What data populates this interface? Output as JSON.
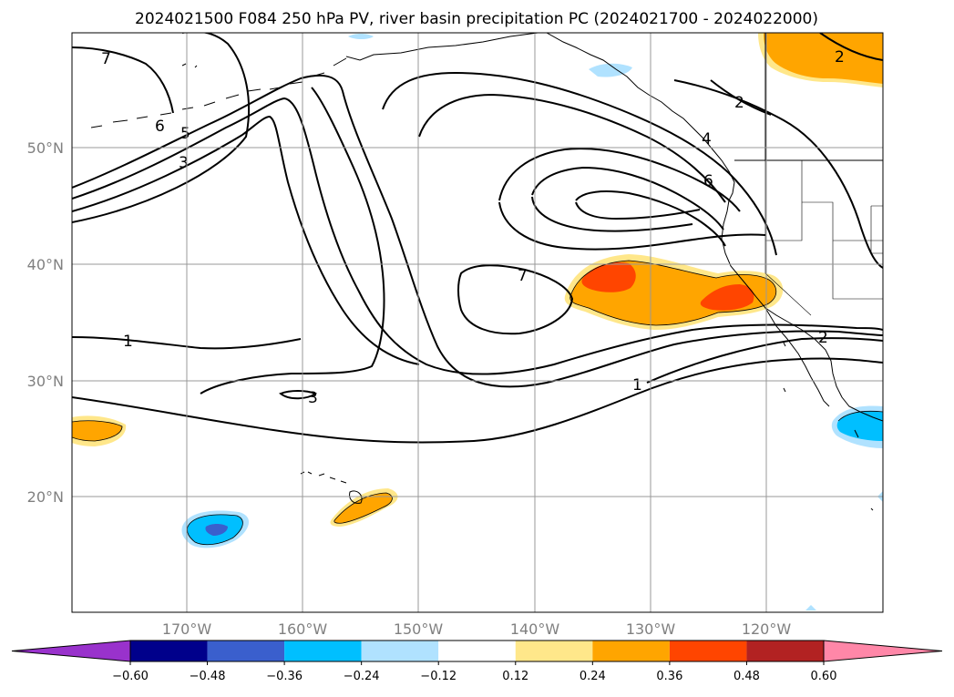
{
  "title": "2024021500 F084 250 hPa PV, river basin precipitation PC (2024021700 - 2024022000)",
  "lat_labels": [
    "50°N",
    "40°N",
    "30°N",
    "20°N"
  ],
  "lon_labels": [
    "170°W",
    "160°W",
    "150°W",
    "140°W",
    "130°W",
    "120°W"
  ],
  "contour_labels": [
    "7",
    "6",
    "5",
    "3",
    "1",
    "3",
    "7",
    "1",
    "2",
    "2",
    "2",
    "4",
    "6"
  ],
  "colorbar": {
    "ticks": [
      "−0.60",
      "−0.48",
      "−0.36",
      "−0.24",
      "−0.12",
      "0.12",
      "0.24",
      "0.36",
      "0.48",
      "0.60"
    ],
    "colors": [
      "#9932cc",
      "#00008b",
      "#3a5fcd",
      "#00bfff",
      "#b0e2ff",
      "#ffffff",
      "#ffe78a",
      "#ffa500",
      "#ff4500",
      "#b22222",
      "#ff87a8"
    ]
  },
  "fill_colors": {
    "light_yellow": "#ffe78a",
    "orange": "#ffa500",
    "red_orange": "#ff4500",
    "light_blue": "#b0e2ff",
    "deep_sky_blue": "#00bfff",
    "royal_blue": "#3a5fcd"
  }
}
